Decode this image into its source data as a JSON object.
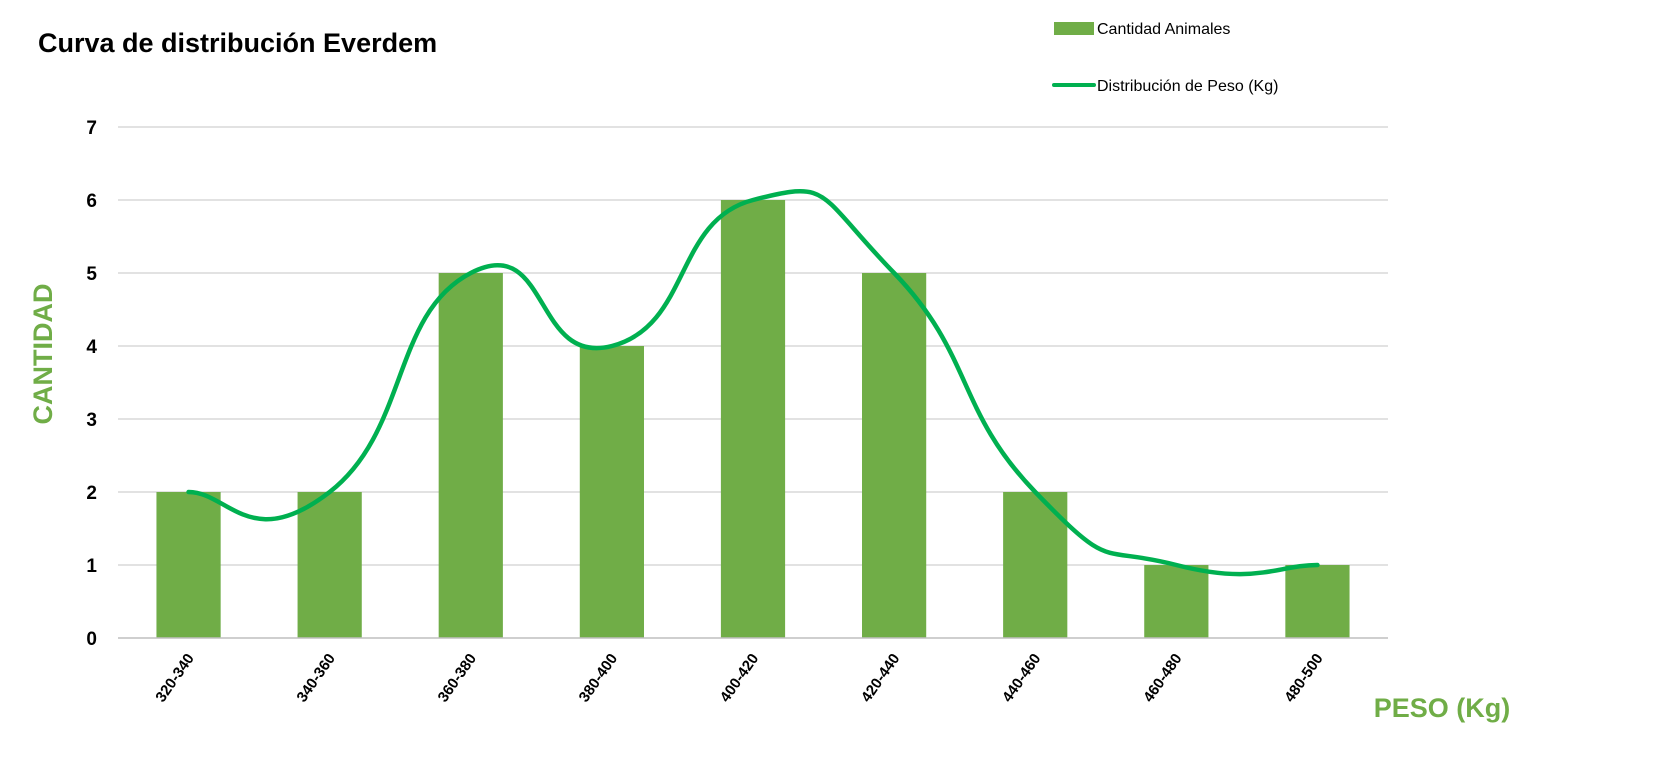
{
  "chart_data": {
    "type": "bar",
    "title": "Curva de distribución Everdem",
    "xlabel": "PESO (Kg)",
    "ylabel": "CANTIDAD",
    "ylim": [
      0,
      7
    ],
    "yticks": [
      0,
      1,
      2,
      3,
      4,
      5,
      6,
      7
    ],
    "grid": true,
    "legend_position": "top-right",
    "categories": [
      "320-340",
      "340-360",
      "360-380",
      "380-400",
      "400-420",
      "420-440",
      "440-460",
      "460-480",
      "480-500"
    ],
    "series": [
      {
        "name": "Cantidad Animales",
        "type": "bar",
        "color": "#70AD47",
        "values": [
          2,
          2,
          5,
          4,
          6,
          5,
          2,
          1,
          1
        ]
      },
      {
        "name": "Distribución de Peso (Kg)",
        "type": "line",
        "smooth": true,
        "color": "#00B050",
        "values": [
          2,
          2,
          5,
          4,
          6,
          5,
          2,
          1,
          1
        ]
      }
    ]
  },
  "colors": {
    "label_green": "#70AD47",
    "gridline": "#D0D0D0",
    "axis_line": "#BFBFBF"
  }
}
